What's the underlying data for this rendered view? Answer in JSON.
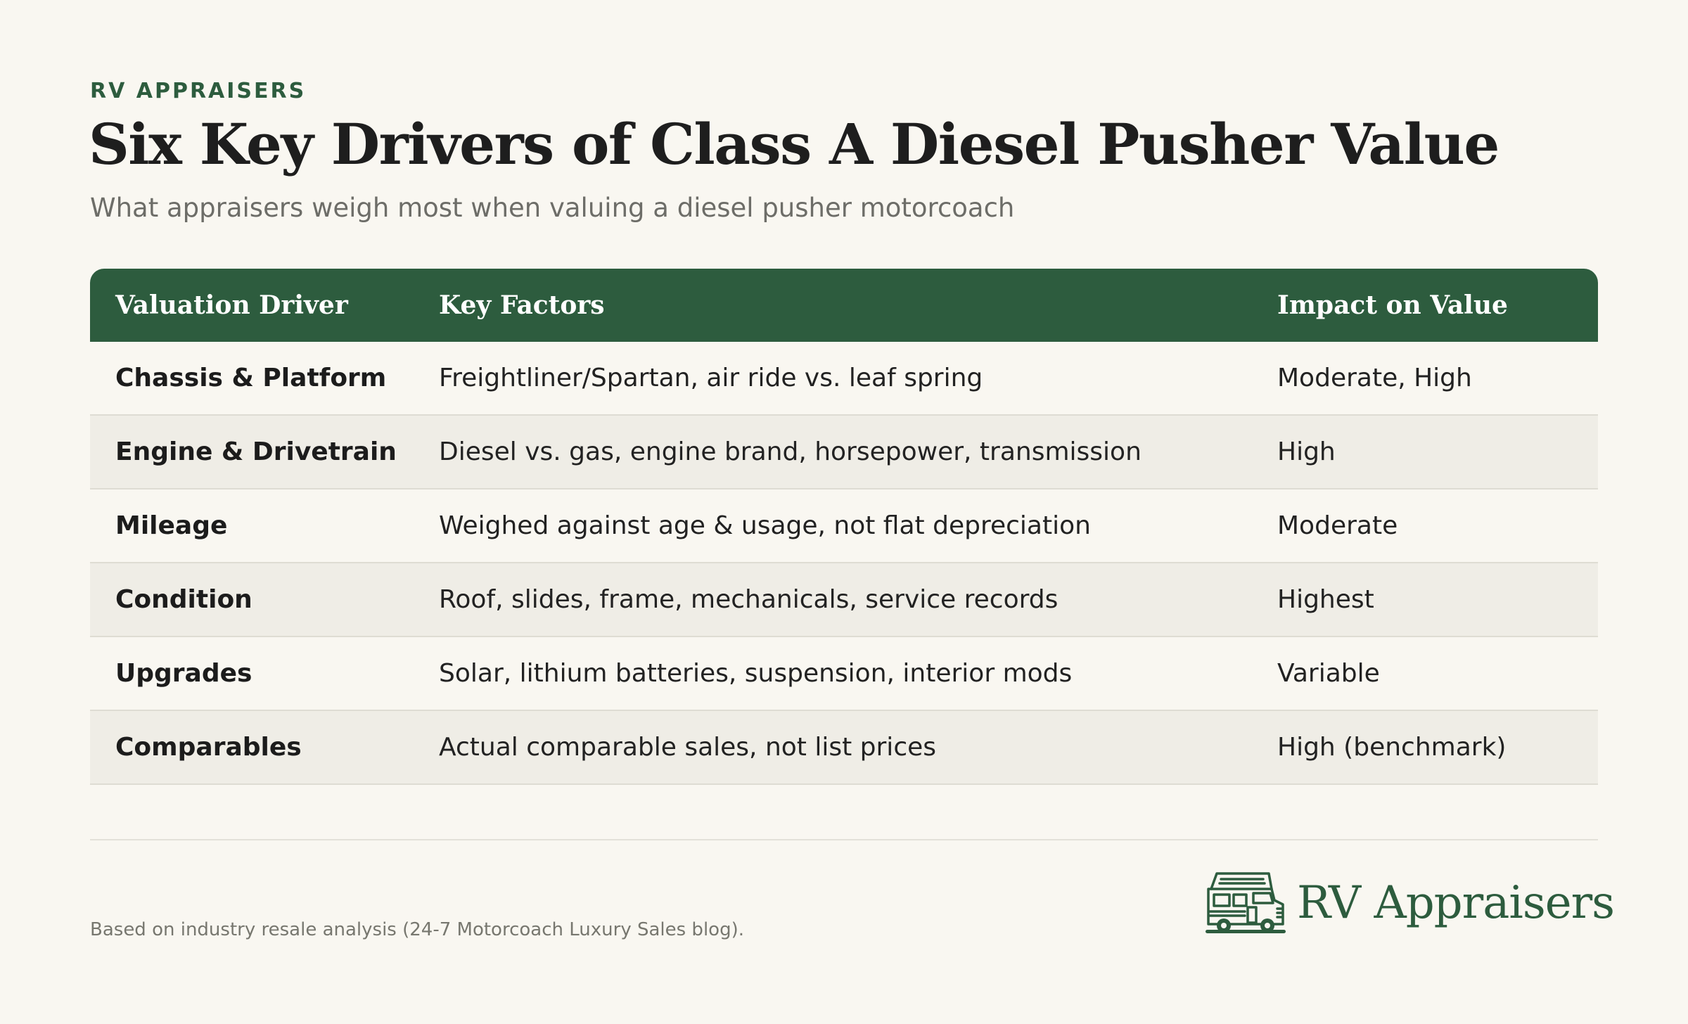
{
  "header": {
    "eyebrow": "RV APPRAISERS",
    "title": "Six Key Drivers of Class A Diesel Pusher Value",
    "subtitle": "What appraisers weigh most when valuing a diesel pusher motorcoach"
  },
  "table": {
    "columns": [
      "Valuation Driver",
      "Key Factors",
      "Impact on Value"
    ],
    "rows": [
      {
        "driver": "Chassis & Platform",
        "factors": "Freightliner/Spartan, air ride vs. leaf spring",
        "impact": "Moderate, High"
      },
      {
        "driver": "Engine & Drivetrain",
        "factors": "Diesel vs. gas, engine brand, horsepower, transmission",
        "impact": "High"
      },
      {
        "driver": "Mileage",
        "factors": "Weighed against age & usage, not flat depreciation",
        "impact": "Moderate"
      },
      {
        "driver": "Condition",
        "factors": "Roof, slides, frame, mechanicals, service records",
        "impact": "Highest"
      },
      {
        "driver": "Upgrades",
        "factors": "Solar, lithium batteries, suspension, interior mods",
        "impact": "Variable"
      },
      {
        "driver": "Comparables",
        "factors": "Actual comparable sales, not list prices",
        "impact": "High (benchmark)"
      }
    ]
  },
  "footer": {
    "note": "Based on industry resale analysis (24-7 Motorcoach Luxury Sales blog).",
    "logo_text": "RV Appraisers",
    "logo_icon": "rv-motorhome-icon"
  },
  "colors": {
    "accent": "#2d5c3e",
    "background": "#f9f7f1",
    "row_alt": "#efede6"
  }
}
